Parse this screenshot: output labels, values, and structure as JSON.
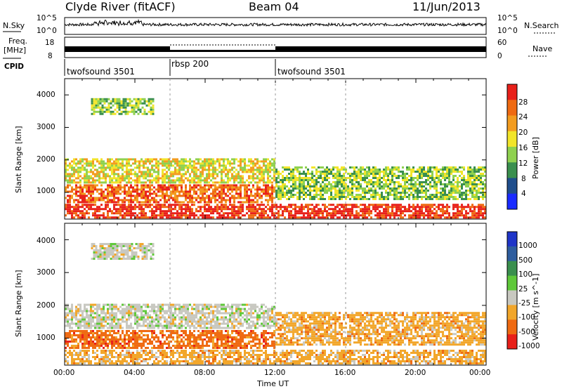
{
  "header": {
    "station": "Clyde River (fitACF)",
    "beam": "Beam 04",
    "date": "11/Jun/2013"
  },
  "top_panels": {
    "nsky_label": "N.Sky",
    "nsky_ticks": [
      "10^5",
      "10^0"
    ],
    "nsearch_label": "N.Search",
    "nsearch_ticks": [
      "10^5",
      "10^0"
    ],
    "freq_label_1": "Freq.",
    "freq_label_2": "[MHz]",
    "freq_ticks": [
      "18",
      "8"
    ],
    "nave_label": "Nave",
    "nave_ticks": [
      "60",
      "0"
    ],
    "cpid_label": "CPID",
    "cpid_segments": [
      {
        "label": "twofsound 3501",
        "start_hour": 0,
        "end_hour": 6
      },
      {
        "label": "rbsp 200",
        "start_hour": 6,
        "end_hour": 12
      },
      {
        "label": "twofsound 3501",
        "start_hour": 12,
        "end_hour": 24
      }
    ]
  },
  "chart_data": [
    {
      "type": "heatmap",
      "title": "",
      "xlabel": "",
      "ylabel": "Slant Range [km]",
      "x_range_hours": [
        0,
        24
      ],
      "ylim": [
        180,
        4500
      ],
      "yticks": [
        "1000",
        "2000",
        "3000",
        "4000"
      ],
      "colorbar_label": "Power [dB]",
      "colorbar_ticks": [
        "4",
        "8",
        "12",
        "16",
        "20",
        "24",
        "28"
      ],
      "colorbar_colors": [
        "#1a2bff",
        "#1f4e8c",
        "#3a8f4e",
        "#8fd14f",
        "#f2e52a",
        "#f39c1f",
        "#ef6a12",
        "#e8201a"
      ],
      "echo_bands": [
        {
          "start": 0,
          "end": 24,
          "range": [
            250,
            650
          ],
          "level": 28
        },
        {
          "start": 0,
          "end": 12,
          "range": [
            700,
            1250
          ],
          "level": 22
        },
        {
          "start": 0,
          "end": 12,
          "range": [
            1300,
            2050
          ],
          "level": 14
        },
        {
          "start": 12,
          "end": 24,
          "range": [
            800,
            1800
          ],
          "level": 12
        },
        {
          "start": 1.5,
          "end": 5,
          "range": [
            3400,
            3900
          ],
          "level": 10
        }
      ]
    },
    {
      "type": "heatmap",
      "title": "",
      "xlabel": "Time UT",
      "ylabel": "Slant Range [km]",
      "x_range_hours": [
        0,
        24
      ],
      "xticks": [
        "00:00",
        "04:00",
        "08:00",
        "12:00",
        "16:00",
        "20:00",
        "00:00"
      ],
      "ylim": [
        180,
        4500
      ],
      "yticks": [
        "1000",
        "2000",
        "3000",
        "4000"
      ],
      "colorbar_label": "Velocity [m s^-1]",
      "colorbar_ticks": [
        "1000",
        "500",
        "100",
        "25",
        "-25",
        "-100",
        "-500",
        "-1000"
      ],
      "colorbar_colors": [
        "#1f35c8",
        "#2e5d9e",
        "#3a8f4e",
        "#5fc83a",
        "#c8c8c0",
        "#f2a62a",
        "#ef6a12",
        "#e8201a"
      ],
      "echo_bands": [
        {
          "start": 0,
          "end": 24,
          "range": [
            250,
            650
          ],
          "level": -100
        },
        {
          "start": 0,
          "end": 12,
          "range": [
            700,
            1250
          ],
          "level": -500
        },
        {
          "start": 0,
          "end": 12,
          "range": [
            1300,
            2050
          ],
          "level": 0
        },
        {
          "start": 12,
          "end": 24,
          "range": [
            800,
            1800
          ],
          "level": -100
        },
        {
          "start": 1.5,
          "end": 5,
          "range": [
            3400,
            3900
          ],
          "level": 0
        }
      ]
    }
  ]
}
